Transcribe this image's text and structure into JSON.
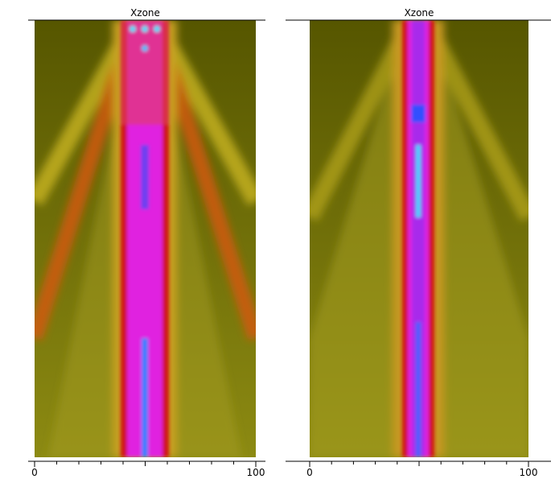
{
  "chart_data": [
    {
      "type": "heatmap",
      "title": "Xzone",
      "xlim": [
        0,
        100
      ],
      "xticks": [
        0,
        100
      ]
    },
    {
      "type": "heatmap",
      "title": "Xzone",
      "xlim": [
        0,
        100
      ],
      "xticks": [
        0,
        100
      ]
    }
  ]
}
